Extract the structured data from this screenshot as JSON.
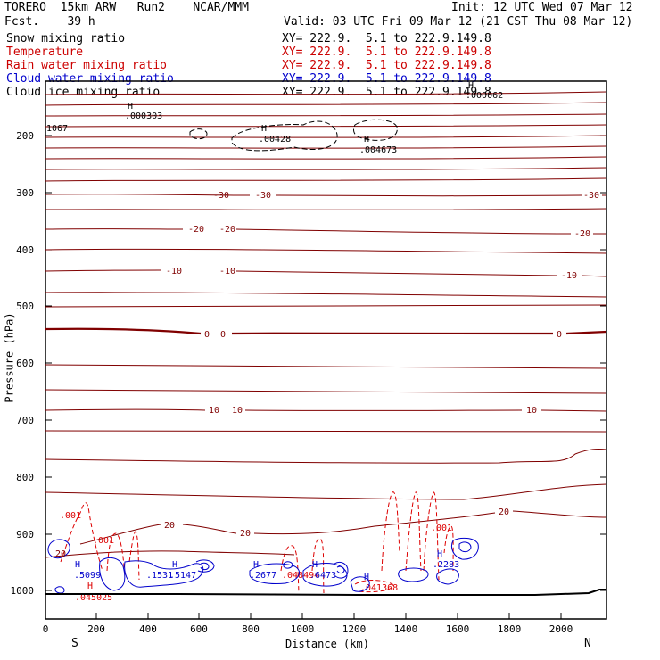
{
  "header": {
    "model": "TORERO  15km ARW   Run2    NCAR/MMM",
    "forecast": "Fcst.    39 h",
    "init": "Init: 12 UTC Wed 07 Mar 12",
    "valid": "Valid: 03 UTC Fri 09 Mar 12 (21 CST Thu 08 Mar 12)"
  },
  "legend": [
    {
      "name": "Snow mixing ratio",
      "xy": "XY= 222.9.  5.1 to 222.9.149.8",
      "color": "#000000"
    },
    {
      "name": "Temperature",
      "xy": "XY= 222.9.  5.1 to 222.9.149.8",
      "color": "#cc0000"
    },
    {
      "name": "Rain water mixing ratio",
      "xy": "XY= 222.9.  5.1 to 222.9.149.8",
      "color": "#cc0000"
    },
    {
      "name": "Cloud water mixing ratio",
      "xy": "XY= 222.9.  5.1 to 222.9.149.8",
      "color": "#0000cc"
    },
    {
      "name": "Cloud ice mixing ratio",
      "xy": "XY= 222.9.  5.1 to 222.9.149.8",
      "color": "#000000"
    }
  ],
  "axes": {
    "ylabel": "Pressure (hPa)",
    "xlabel": "Distance (km)",
    "yticks": [
      "200",
      "300",
      "400",
      "500",
      "600",
      "700",
      "800",
      "900",
      "1000"
    ],
    "xticks": [
      "0",
      "200",
      "400",
      "600",
      "800",
      "1000",
      "1200",
      "1400",
      "1600",
      "1800",
      "2000"
    ],
    "left_end": "S",
    "right_end": "N"
  },
  "labels": {
    "temperature": [
      "-30",
      "-30",
      "-30",
      "-20",
      "-20",
      "-20",
      "-10",
      "-10",
      "-10",
      "0",
      "0",
      "0",
      "10",
      "10",
      "10",
      "20",
      "20",
      "20"
    ],
    "snow": [
      ".000303",
      "H",
      ".00428",
      "H",
      ".004673",
      "H",
      "1067",
      ".000062",
      "H"
    ],
    "rain": [
      ".001",
      ".001",
      ".001",
      "H",
      ".045025",
      ".048494",
      ".041368"
    ],
    "cloud": [
      "H",
      ".5099",
      ".1531",
      "H",
      ".5147",
      "H",
      ".2677",
      "H",
      ".6473",
      "H",
      ".2283",
      "H"
    ]
  },
  "colors": {
    "temperature": "#800000",
    "zero_isotherm": "#800000",
    "rain": "#dd0000",
    "cloud": "#0000cc",
    "snow": "#000000"
  }
}
